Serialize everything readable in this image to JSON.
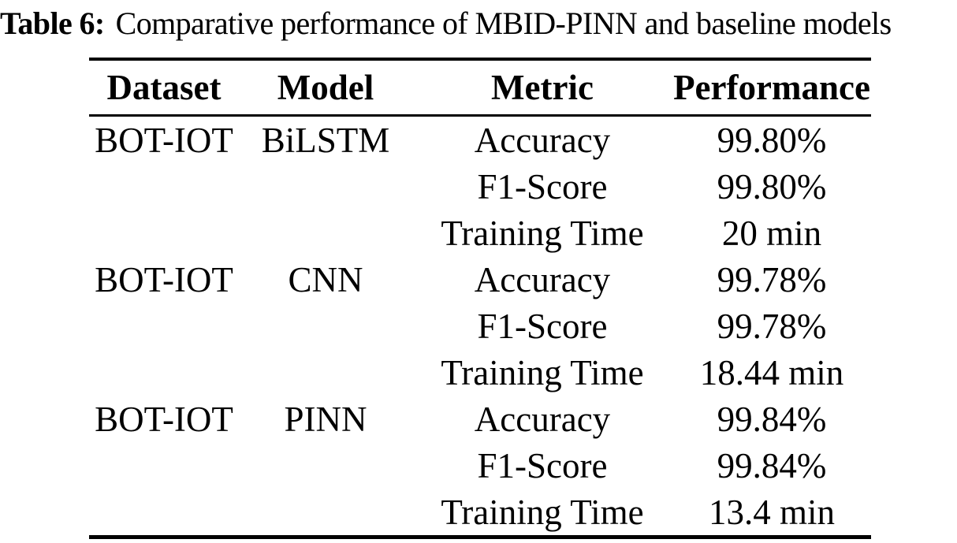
{
  "caption": {
    "label": "Table 6:",
    "text": "Comparative performance of MBID-PINN and baseline models"
  },
  "table": {
    "headers": {
      "dataset": "Dataset",
      "model": "Model",
      "metric": "Metric",
      "performance": "Performance"
    },
    "rows": [
      {
        "dataset": "BOT-IOT",
        "model": "BiLSTM",
        "metric": "Accuracy",
        "performance": "99.80%"
      },
      {
        "dataset": "",
        "model": "",
        "metric": "F1-Score",
        "performance": "99.80%"
      },
      {
        "dataset": "",
        "model": "",
        "metric": "Training Time",
        "performance": "20 min"
      },
      {
        "dataset": "BOT-IOT",
        "model": "CNN",
        "metric": "Accuracy",
        "performance": "99.78%"
      },
      {
        "dataset": "",
        "model": "",
        "metric": "F1-Score",
        "performance": "99.78%"
      },
      {
        "dataset": "",
        "model": "",
        "metric": "Training Time",
        "performance": "18.44 min"
      },
      {
        "dataset": "BOT-IOT",
        "model": "PINN",
        "metric": "Accuracy",
        "performance": "99.84%"
      },
      {
        "dataset": "",
        "model": "",
        "metric": "F1-Score",
        "performance": "99.84%"
      },
      {
        "dataset": "",
        "model": "",
        "metric": "Training Time",
        "performance": "13.4 min"
      }
    ]
  },
  "colors": {
    "text": "#000000",
    "background": "#ffffff",
    "rule": "#000000"
  }
}
